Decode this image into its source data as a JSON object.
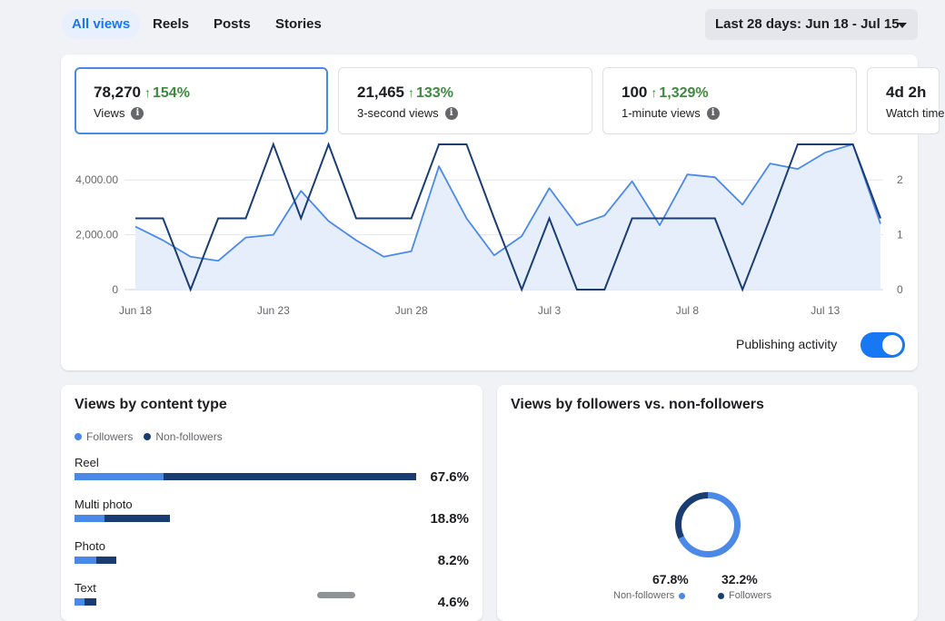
{
  "tabs": [
    {
      "label": "All views",
      "active": true
    },
    {
      "label": "Reels",
      "active": false
    },
    {
      "label": "Posts",
      "active": false
    },
    {
      "label": "Stories",
      "active": false
    }
  ],
  "date_range": "Last 28 days: Jun 18 - Jul 15",
  "metrics": [
    {
      "value": "78,270",
      "change": "154%",
      "label": "Views",
      "selected": true
    },
    {
      "value": "21,465",
      "change": "133%",
      "label": "3-second views",
      "selected": false
    },
    {
      "value": "100",
      "change": "1,329%",
      "label": "1-minute views",
      "selected": false
    },
    {
      "value": "4d 2h",
      "change": "",
      "label": "Watch time",
      "selected": false
    }
  ],
  "publishing_activity": {
    "label": "Publishing activity",
    "enabled": true
  },
  "colors": {
    "accent": "#1877f2",
    "followers": "#4a89e8",
    "non_followers": "#193d73",
    "positive": "#3e8a3e"
  },
  "chart_data": {
    "type": "line",
    "x": [
      "Jun 18",
      "Jun 19",
      "Jun 20",
      "Jun 21",
      "Jun 22",
      "Jun 23",
      "Jun 24",
      "Jun 25",
      "Jun 26",
      "Jun 27",
      "Jun 28",
      "Jun 29",
      "Jun 30",
      "Jul 1",
      "Jul 2",
      "Jul 3",
      "Jul 4",
      "Jul 5",
      "Jul 6",
      "Jul 7",
      "Jul 8",
      "Jul 9",
      "Jul 10",
      "Jul 11",
      "Jul 12",
      "Jul 13",
      "Jul 14",
      "Jul 15"
    ],
    "x_tick_labels": [
      "Jun 18",
      "Jun 23",
      "Jun 28",
      "Jul 3",
      "Jul 8",
      "Jul 13"
    ],
    "y_left_ticks": [
      "0",
      "2,000.00",
      "4,000.00"
    ],
    "y_right_ticks": [
      "0",
      "1",
      "2"
    ],
    "ylim_left": [
      0,
      5000
    ],
    "ylim_right": [
      0,
      2.5
    ],
    "series": [
      {
        "axis": "left",
        "type": "area",
        "values": [
          2300,
          1800,
          1200,
          1050,
          1900,
          2000,
          3600,
          2500,
          1800,
          1200,
          1400,
          4500,
          2600,
          1250,
          1950,
          3700,
          2350,
          2700,
          3950,
          2350,
          4200,
          4100,
          3100,
          4600,
          4400,
          5000,
          5300,
          2400
        ]
      },
      {
        "axis": "right",
        "type": "line",
        "values": [
          1.3,
          1.3,
          0,
          1.3,
          1.3,
          2.65,
          1.3,
          2.65,
          1.3,
          1.3,
          1.3,
          2.65,
          2.65,
          1.3,
          0,
          1.3,
          0,
          0,
          1.3,
          1.3,
          1.3,
          1.3,
          0,
          1.3,
          2.65,
          2.65,
          2.65,
          1.3
        ]
      }
    ]
  },
  "content_type": {
    "title": "Views by content type",
    "legend": [
      {
        "label": "Followers"
      },
      {
        "label": "Non-followers"
      }
    ],
    "rows": [
      {
        "label": "Reel",
        "followers": 22.5,
        "non_followers": 64.0,
        "pct": "67.6%"
      },
      {
        "label": "Multi photo",
        "followers": 7.6,
        "non_followers": 16.5,
        "pct": "18.8%"
      },
      {
        "label": "Photo",
        "followers": 5.5,
        "non_followers": 5.0,
        "pct": "8.2%"
      },
      {
        "label": "Text",
        "followers": 2.6,
        "non_followers": 3.0,
        "pct": "4.6%"
      }
    ]
  },
  "followers_split": {
    "title": "Views by followers vs. non-followers",
    "non_followers": {
      "value": 67.8,
      "pct": "67.8%",
      "label": "Non-followers"
    },
    "followers": {
      "value": 32.2,
      "pct": "32.2%",
      "label": "Followers"
    }
  }
}
